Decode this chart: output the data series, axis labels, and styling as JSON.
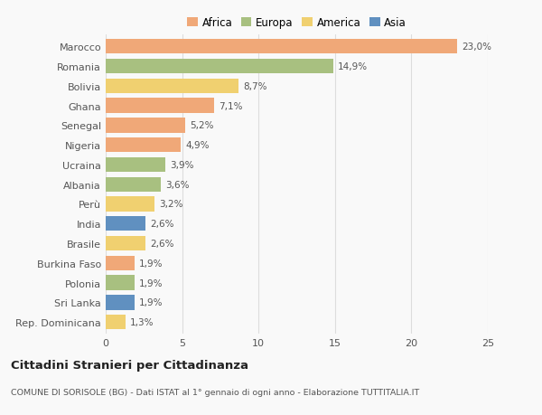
{
  "countries": [
    "Marocco",
    "Romania",
    "Bolivia",
    "Ghana",
    "Senegal",
    "Nigeria",
    "Ucraina",
    "Albania",
    "Perù",
    "India",
    "Brasile",
    "Burkina Faso",
    "Polonia",
    "Sri Lanka",
    "Rep. Dominicana"
  ],
  "values": [
    23.0,
    14.9,
    8.7,
    7.1,
    5.2,
    4.9,
    3.9,
    3.6,
    3.2,
    2.6,
    2.6,
    1.9,
    1.9,
    1.9,
    1.3
  ],
  "labels": [
    "23,0%",
    "14,9%",
    "8,7%",
    "7,1%",
    "5,2%",
    "4,9%",
    "3,9%",
    "3,6%",
    "3,2%",
    "2,6%",
    "2,6%",
    "1,9%",
    "1,9%",
    "1,9%",
    "1,3%"
  ],
  "continents": [
    "Africa",
    "Europa",
    "America",
    "Africa",
    "Africa",
    "Africa",
    "Europa",
    "Europa",
    "America",
    "Asia",
    "America",
    "Africa",
    "Europa",
    "Asia",
    "America"
  ],
  "continent_colors": {
    "Africa": "#F0A878",
    "Europa": "#A8C080",
    "America": "#F0D070",
    "Asia": "#6090C0"
  },
  "legend_order": [
    "Africa",
    "Europa",
    "America",
    "Asia"
  ],
  "xlim": [
    0,
    25
  ],
  "xticks": [
    0,
    5,
    10,
    15,
    20,
    25
  ],
  "title": "Cittadini Stranieri per Cittadinanza",
  "subtitle": "COMUNE DI SORISOLE (BG) - Dati ISTAT al 1° gennaio di ogni anno - Elaborazione TUTTITALIA.IT",
  "bg_color": "#f9f9f9",
  "grid_color": "#dddddd",
  "bar_height": 0.75
}
